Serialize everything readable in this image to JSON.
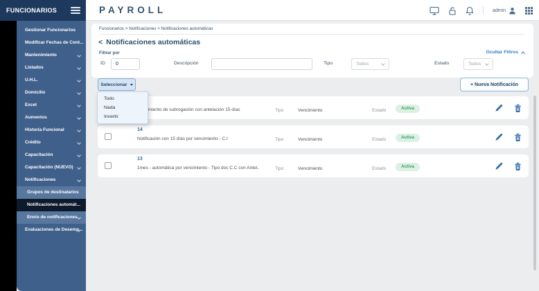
{
  "colors": {
    "sidebar_header_bg": "#1d3a5e",
    "sidebar_panel_bg": "#40608c",
    "sidebar_sub_highlight_bg": "#58779f",
    "sidebar_active_bg": "#0d1a2c",
    "brand_text": "#31536f",
    "link_blue": "#2f7bc4",
    "accent_blue": "#2d6ba6",
    "badge_bg": "#dcf0e3",
    "badge_text": "#38a065",
    "content_bg": "#ebedee"
  },
  "sidebar": {
    "title": "FUNCIONARIOS",
    "items_top": [
      {
        "label": "Gestionar Funcionarios",
        "chevron": false
      },
      {
        "label": "Modificar Fechas de Cont...",
        "chevron": false
      },
      {
        "label": "Mantenimiento",
        "chevron": true
      },
      {
        "label": "Listados",
        "chevron": true
      },
      {
        "label": "U.H.L.",
        "chevron": true
      },
      {
        "label": "Domicilio",
        "chevron": true
      },
      {
        "label": "Excel",
        "chevron": true
      },
      {
        "label": "Aumentos",
        "chevron": true
      },
      {
        "label": "Historia Funcional",
        "chevron": true
      },
      {
        "label": "Crédito",
        "chevron": true
      },
      {
        "label": "Capacitación",
        "chevron": true
      },
      {
        "label": "Capacitación (NUEVO)",
        "chevron": true
      },
      {
        "label": "Notificaciones",
        "chevron": true
      }
    ],
    "subitems": [
      {
        "label": "Grupos de destinatarios",
        "state": "highlight",
        "chevron": false
      },
      {
        "label": "Notificaciones automát...",
        "state": "active",
        "chevron": false
      },
      {
        "label": "Envío de notificaciones",
        "state": "highlight",
        "chevron": true
      }
    ],
    "items_bottom": [
      {
        "label": "Evaluaciones de Desemp...",
        "chevron": true
      }
    ]
  },
  "topbar": {
    "brand": "PAYROLL",
    "user": "admin"
  },
  "page": {
    "breadcrumb": "Funcionarios > Notificaciones > Notificaciones automáticas",
    "back_glyph": "<",
    "title": "Notificaciones automáticas",
    "filter_label": "Filtrar por",
    "hide_filters": "Ocultar Filtros",
    "filters": {
      "id_label": "ID",
      "id_value": "0",
      "desc_label": "Descripción",
      "desc_value": "",
      "tipo_label": "Tipo",
      "tipo_value": "Todos",
      "estado_label": "Estado",
      "estado_value": "Todos"
    },
    "select_button": "Seleccionar",
    "select_menu": [
      "Todo",
      "Nada",
      "Invertir"
    ],
    "new_button": "+ Nueva Notificación"
  },
  "rows": [
    {
      "id": "15",
      "desc": "Vencimiento de subrogación con antelación 15 días",
      "tipo_label": "Tipo",
      "tipo": "Vencimiento",
      "estado_label": "Estado",
      "estado": "Activa"
    },
    {
      "id": "14",
      "desc": "Notificación con 15 días por vencimiento - C.I",
      "tipo_label": "Tipo",
      "tipo": "Vencimiento",
      "estado_label": "Estado",
      "estado": "Activa"
    },
    {
      "id": "13",
      "desc": "1mes - automática por vencimiento - Tipo doc C.C con Antel..",
      "tipo_label": "Tipo",
      "tipo": "Vencimiento",
      "estado_label": "Estado",
      "estado": "Activa"
    }
  ]
}
